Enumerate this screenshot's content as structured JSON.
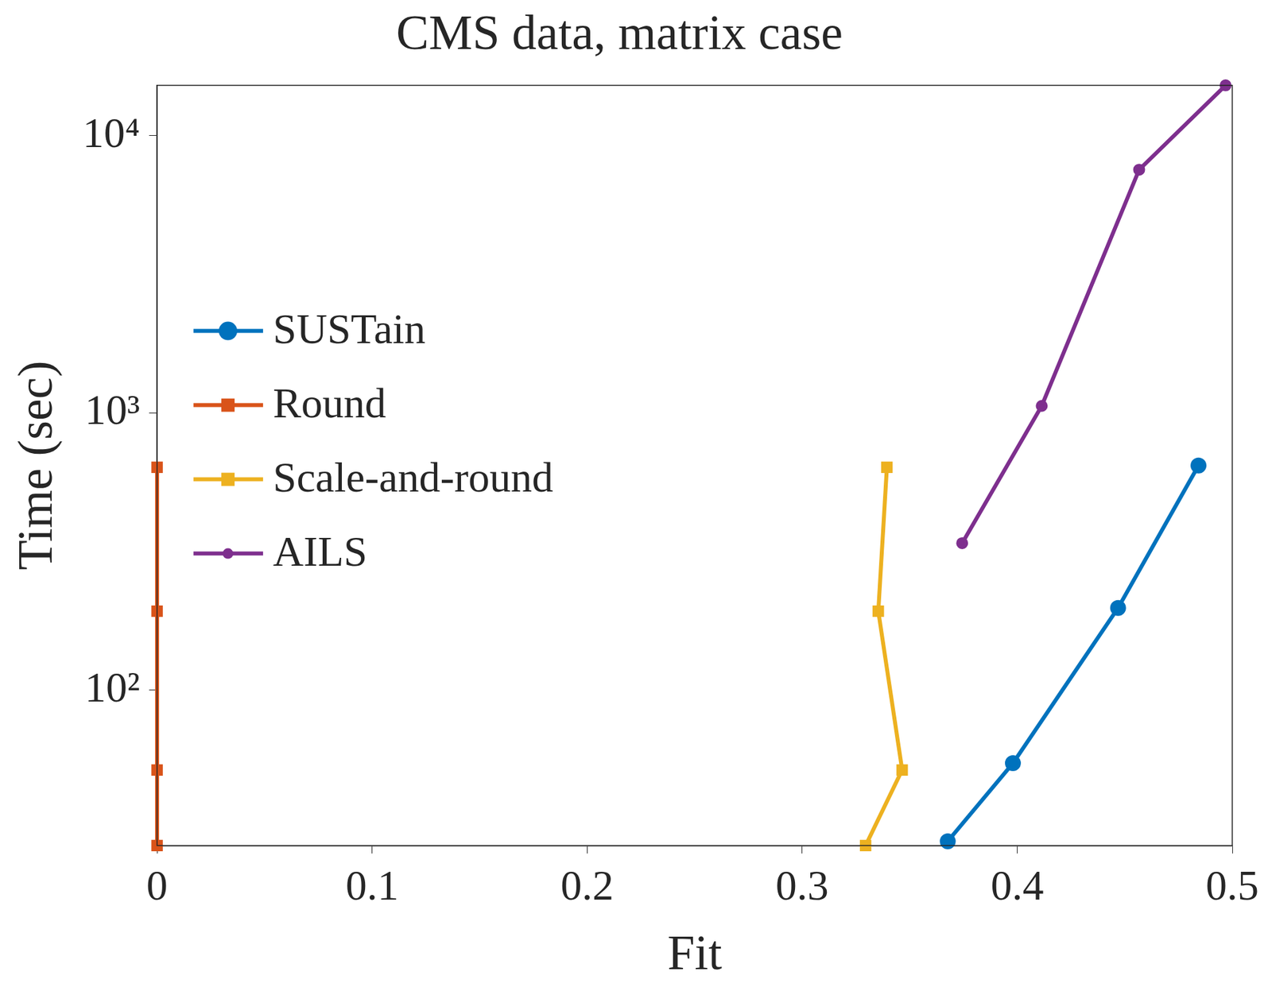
{
  "chart_data": {
    "type": "line",
    "title": "CMS data, matrix case",
    "x_label": "Fit",
    "y_label": "Time (sec)",
    "log": "y",
    "grid": false,
    "legend": "left",
    "xlim": [
      0,
      0.5
    ],
    "xticks": [
      0,
      0.1,
      0.2,
      0.3,
      0.4,
      0.5
    ],
    "ylim": [
      27.5,
      15200
    ],
    "yticks": [
      {
        "value": 100,
        "label": "10²"
      },
      {
        "value": 1000,
        "label": "10³"
      },
      {
        "value": 10000,
        "label": "10⁴"
      }
    ],
    "series": [
      {
        "name": "SUSTain",
        "color": "#0072BD",
        "marker": "circle",
        "line_style": "solid",
        "x": [
          0.3677,
          0.398,
          0.4469,
          0.4843
        ],
        "values": [
          28.5,
          54.5,
          198,
          646
        ]
      },
      {
        "name": "Round",
        "color": "#D95319",
        "marker": "square",
        "line_style": "solid",
        "x": [
          0,
          0,
          0,
          0
        ],
        "values": [
          27.5,
          51.5,
          192.6,
          637
        ]
      },
      {
        "name": "Scale-and-round",
        "color": "#EDB120",
        "marker": "square",
        "line_style": "solid",
        "x": [
          0.3295,
          0.3465,
          0.3354,
          0.3394
        ],
        "values": [
          27.5,
          51.5,
          192.6,
          637
        ]
      },
      {
        "name": "AILS",
        "color": "#7E2F8E",
        "marker": "circle",
        "line_style": "solid",
        "x": [
          0.3744,
          0.4114,
          0.4567,
          0.4969
        ],
        "values": [
          339,
          1060,
          7540,
          15200
        ]
      }
    ]
  }
}
